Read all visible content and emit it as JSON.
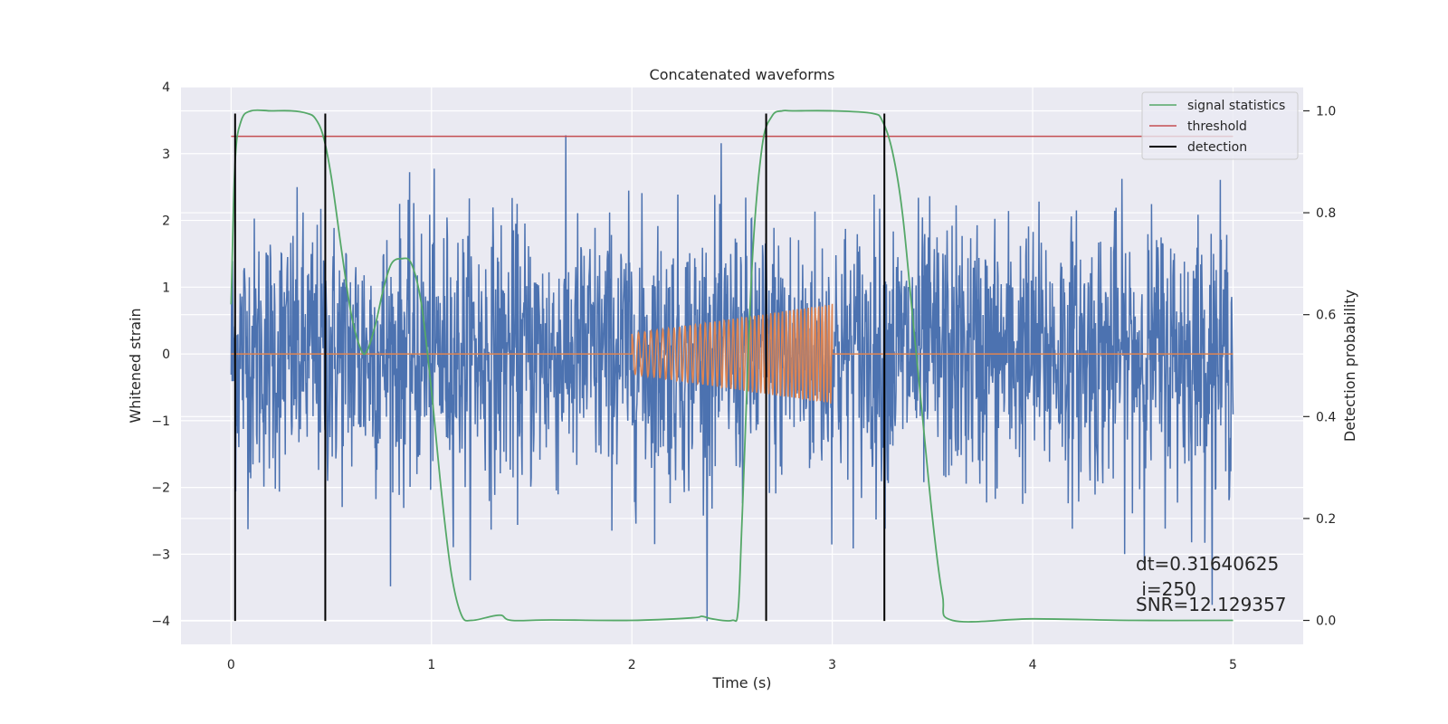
{
  "chart_data": {
    "type": "line",
    "title": "Concatenated waveforms",
    "xlabel": "Time (s)",
    "ylabel": "Whitened strain",
    "ylabel_right": "Detection probability",
    "xlim": [
      -0.25,
      5.35
    ],
    "ylim": [
      -4.35,
      4.0
    ],
    "ylim_right": [
      -0.047,
      1.047
    ],
    "x_ticks": [
      0,
      1,
      2,
      3,
      4,
      5
    ],
    "y_ticks": [
      -4,
      -3,
      -2,
      -1,
      0,
      1,
      2,
      3,
      4
    ],
    "y_ticks_right": [
      0.0,
      0.2,
      0.4,
      0.6,
      0.8,
      1.0
    ],
    "x_tick_labels": [
      "0",
      "1",
      "2",
      "3",
      "4",
      "5"
    ],
    "y_tick_labels": [
      "−4",
      "−3",
      "−2",
      "−1",
      "0",
      "1",
      "2",
      "3",
      "4"
    ],
    "y_tick_labels_right": [
      "0.0",
      "0.2",
      "0.4",
      "0.6",
      "0.8",
      "1.0"
    ],
    "grid": true,
    "legend_position": "top-right",
    "legend": [
      "signal statistics",
      "threshold",
      "detection"
    ],
    "colors": {
      "strain": "#4c72b0",
      "injected_waveform": "#dd8452",
      "signal_statistics": "#55a868",
      "threshold": "#c44e52",
      "detection": "#000000",
      "background": "#eaeaf2",
      "grid": "#ffffff"
    },
    "series": [
      {
        "label": "whitened strain (noise)",
        "axis": "left",
        "x_range": [
          0,
          5
        ],
        "typical_amplitude": 1.0,
        "envelope_max": 3.6,
        "envelope_min": -4.0
      },
      {
        "label": "injected chirp",
        "axis": "left",
        "x_range": [
          2.0,
          3.0
        ],
        "amplitude_start": 0.3,
        "amplitude_end": 0.75,
        "baseline": 0
      },
      {
        "name": "signal statistics",
        "axis": "right",
        "x": [
          0.0,
          0.02,
          0.05,
          0.1,
          0.2,
          0.3,
          0.38,
          0.42,
          0.46,
          0.5,
          0.55,
          0.6,
          0.65,
          0.68,
          0.72,
          0.76,
          0.8,
          0.85,
          0.9,
          0.95,
          1.0,
          1.05,
          1.1,
          1.15,
          1.2,
          1.3,
          1.35,
          1.4,
          1.6,
          2.0,
          2.3,
          2.35,
          2.4,
          2.5,
          2.53,
          2.55,
          2.6,
          2.65,
          2.7,
          2.75,
          2.8,
          3.0,
          3.2,
          3.25,
          3.3,
          3.35,
          3.4,
          3.45,
          3.5,
          3.55,
          3.6,
          4.0,
          4.5,
          5.0
        ],
        "y": [
          0.62,
          0.9,
          0.98,
          1.0,
          1.0,
          1.0,
          0.995,
          0.985,
          0.95,
          0.87,
          0.73,
          0.6,
          0.53,
          0.53,
          0.58,
          0.65,
          0.7,
          0.71,
          0.7,
          0.62,
          0.45,
          0.25,
          0.09,
          0.01,
          0.0,
          0.008,
          0.01,
          0.0,
          0.001,
          0.0,
          0.005,
          0.008,
          0.003,
          0.0,
          0.02,
          0.2,
          0.7,
          0.93,
          0.99,
          1.0,
          1.0,
          1.0,
          0.995,
          0.98,
          0.92,
          0.8,
          0.6,
          0.4,
          0.2,
          0.05,
          0.0,
          0.003,
          0.0,
          0.0
        ]
      },
      {
        "name": "threshold",
        "axis": "right",
        "x": [
          0,
          5
        ],
        "y": [
          0.95,
          0.95
        ]
      }
    ],
    "detections_x": [
      0.02,
      0.47,
      2.67,
      3.26
    ],
    "detection_y_range": [
      -4.0,
      3.6
    ],
    "annotations": [
      "dt=0.31640625",
      " i=250",
      "SNR=12.129357"
    ]
  }
}
